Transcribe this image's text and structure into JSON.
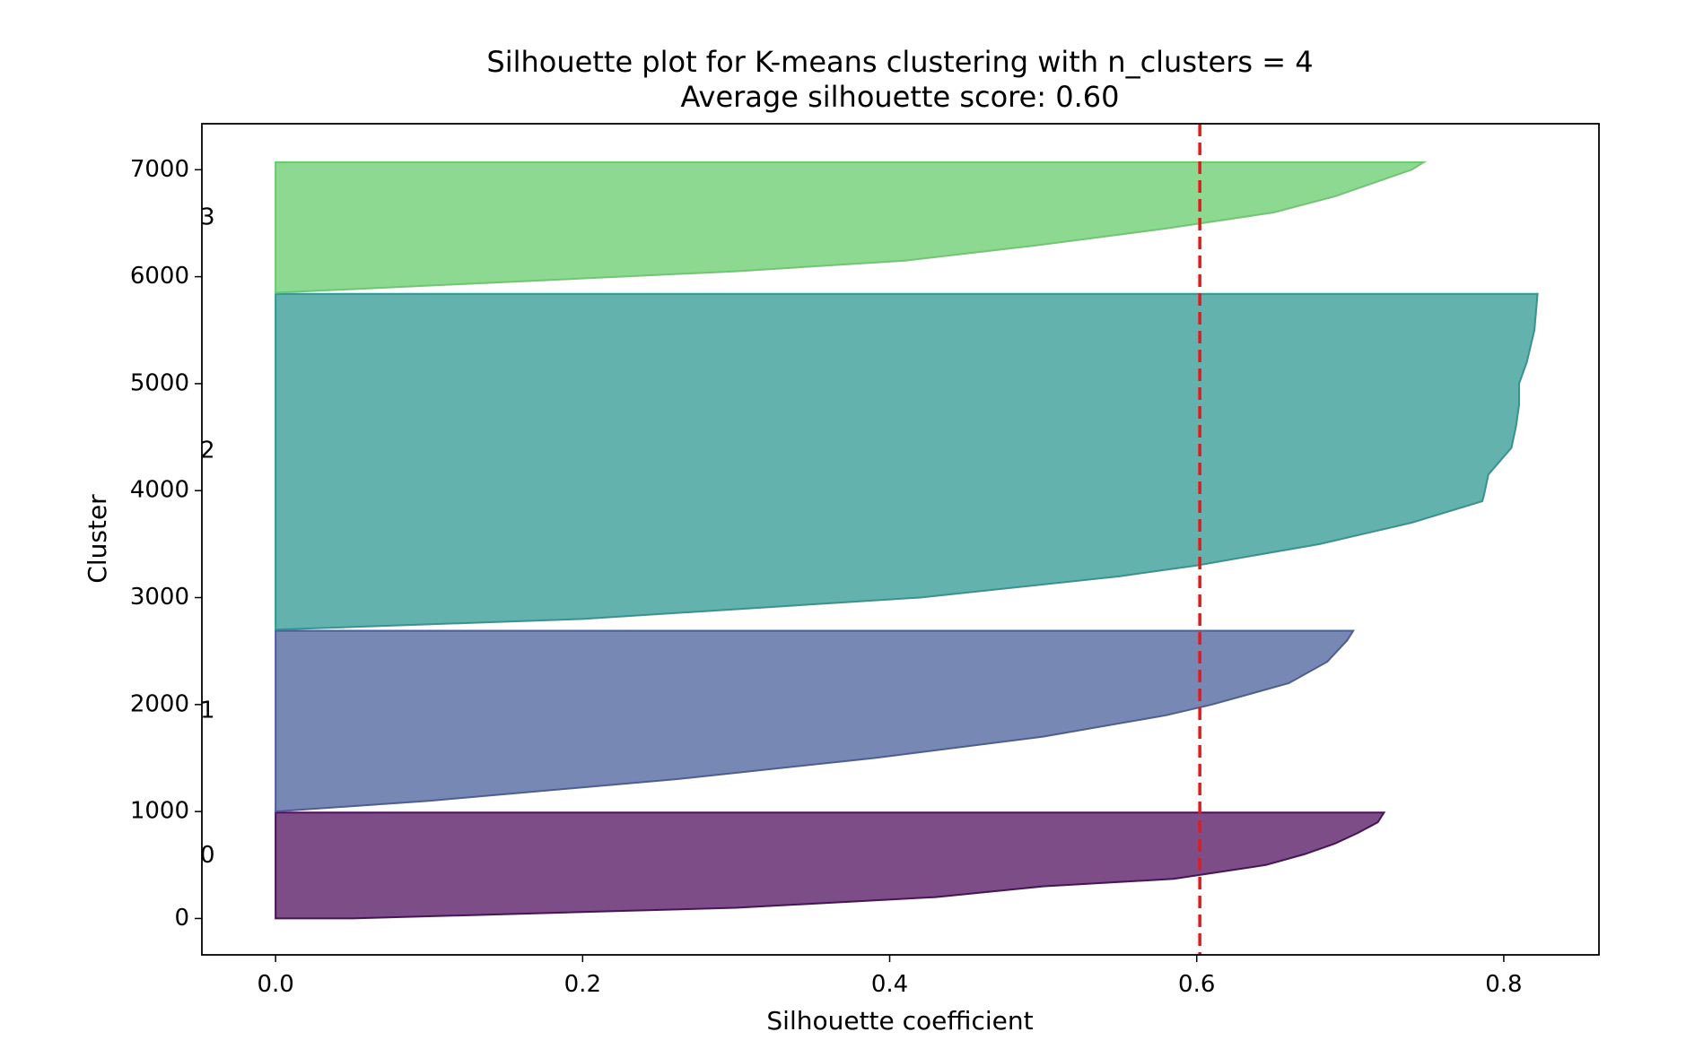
{
  "chart_data": {
    "type": "area",
    "title": "Silhouette plot for K-means clustering with n_clusters = 4",
    "subtitle": "Average silhouette score: 0.60",
    "xlabel": "Silhouette coefficient",
    "ylabel": "Cluster",
    "xlim": [
      -0.048,
      0.862
    ],
    "ylim": [
      -340,
      7430
    ],
    "xticks": [
      0.0,
      0.2,
      0.4,
      0.6,
      0.8
    ],
    "xtick_labels": [
      "0.0",
      "0.2",
      "0.4",
      "0.6",
      "0.8"
    ],
    "yticks": [
      0,
      1000,
      2000,
      3000,
      4000,
      5000,
      6000,
      7000
    ],
    "ytick_labels": [
      "0",
      "1000",
      "2000",
      "3000",
      "4000",
      "5000",
      "6000",
      "7000"
    ],
    "grid": false,
    "average_line": {
      "value": 0.602,
      "color": "#e3191b",
      "style": "dashed"
    },
    "series": [
      {
        "label": "0",
        "label_y": 585,
        "y_start": 0,
        "y_end": 990,
        "color": "#440154",
        "profile": [
          [
            0,
            0.05
          ],
          [
            100,
            0.3
          ],
          [
            200,
            0.43
          ],
          [
            300,
            0.5
          ],
          [
            370,
            0.585
          ],
          [
            500,
            0.645
          ],
          [
            600,
            0.67
          ],
          [
            700,
            0.69
          ],
          [
            800,
            0.705
          ],
          [
            900,
            0.718
          ],
          [
            990,
            0.722
          ]
        ]
      },
      {
        "label": "1",
        "label_y": 1940,
        "y_start": 1000,
        "y_end": 2690,
        "color": "#3e5594",
        "profile": [
          [
            1000,
            0.0
          ],
          [
            1100,
            0.1
          ],
          [
            1300,
            0.26
          ],
          [
            1500,
            0.39
          ],
          [
            1700,
            0.5
          ],
          [
            1900,
            0.58
          ],
          [
            2000,
            0.61
          ],
          [
            2200,
            0.66
          ],
          [
            2400,
            0.685
          ],
          [
            2600,
            0.698
          ],
          [
            2690,
            0.702
          ]
        ]
      },
      {
        "label": "2",
        "label_y": 4370,
        "y_start": 2700,
        "y_end": 5840,
        "color": "#21918c",
        "profile": [
          [
            2700,
            0.0
          ],
          [
            2800,
            0.2
          ],
          [
            3000,
            0.42
          ],
          [
            3200,
            0.55
          ],
          [
            3300,
            0.6
          ],
          [
            3500,
            0.68
          ],
          [
            3700,
            0.74
          ],
          [
            3900,
            0.786
          ],
          [
            3950,
            0.787
          ],
          [
            4150,
            0.79
          ],
          [
            4400,
            0.805
          ],
          [
            4600,
            0.808
          ],
          [
            4800,
            0.81
          ],
          [
            5000,
            0.81
          ],
          [
            5200,
            0.815
          ],
          [
            5500,
            0.82
          ],
          [
            5840,
            0.822
          ]
        ]
      },
      {
        "label": "3",
        "label_y": 6550,
        "y_start": 5850,
        "y_end": 7070,
        "color": "#5ec962",
        "profile": [
          [
            5850,
            0.0
          ],
          [
            5950,
            0.15
          ],
          [
            6050,
            0.3
          ],
          [
            6150,
            0.41
          ],
          [
            6300,
            0.5
          ],
          [
            6450,
            0.58
          ],
          [
            6600,
            0.65
          ],
          [
            6750,
            0.69
          ],
          [
            6900,
            0.72
          ],
          [
            7000,
            0.74
          ],
          [
            7070,
            0.748
          ]
        ]
      }
    ]
  }
}
